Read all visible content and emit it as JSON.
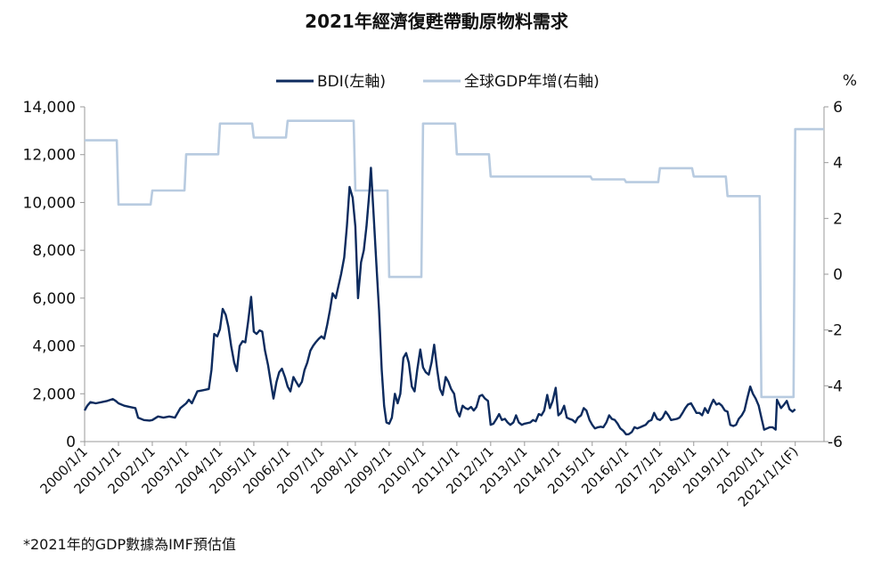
{
  "chart_data": {
    "type": "line",
    "title": "2021年經濟復甦帶動原物料需求",
    "footnote": "*2021年的GDP數據為IMF預估值",
    "y_left": {
      "ylim": [
        0,
        14000
      ],
      "ticks": [
        "0",
        "2,000",
        "4,000",
        "6,000",
        "8,000",
        "10,000",
        "12,000",
        "14,000"
      ],
      "tick_values": [
        0,
        2000,
        4000,
        6000,
        8000,
        10000,
        12000,
        14000
      ]
    },
    "y_right": {
      "label": "%",
      "ylim": [
        -6,
        6
      ],
      "ticks": [
        "-6",
        "-4",
        "-2",
        "0",
        "2",
        "4",
        "6"
      ],
      "tick_values": [
        -6,
        -4,
        -2,
        0,
        2,
        4,
        6
      ]
    },
    "x_ticks": [
      "2000/1/1",
      "2001/1/1",
      "2002/1/1",
      "2003/1/1",
      "2004/1/1",
      "2005/1/1",
      "2006/1/1",
      "2007/1/1",
      "2008/1/1",
      "2009/1/1",
      "2010/1/1",
      "2011/1/1",
      "2012/1/1",
      "2013/1/1",
      "2014/1/1",
      "2015/1/1",
      "2016/1/1",
      "2017/1/1",
      "2018/1/1",
      "2019/1/1",
      "2020/1/1",
      "2021/1/1(F)"
    ],
    "x_range": [
      2000.0,
      2021.85
    ],
    "legend": {
      "position": "top"
    },
    "series": [
      {
        "name": "BDI(左軸)",
        "axis": "left",
        "color": "#0d2b5e",
        "points": [
          [
            2000.0,
            1300
          ],
          [
            2000.08,
            1500
          ],
          [
            2000.17,
            1650
          ],
          [
            2000.33,
            1600
          ],
          [
            2000.5,
            1650
          ],
          [
            2000.67,
            1700
          ],
          [
            2000.83,
            1780
          ],
          [
            2000.92,
            1700
          ],
          [
            2001.0,
            1600
          ],
          [
            2001.17,
            1500
          ],
          [
            2001.33,
            1450
          ],
          [
            2001.5,
            1400
          ],
          [
            2001.58,
            1000
          ],
          [
            2001.75,
            900
          ],
          [
            2001.92,
            880
          ],
          [
            2002.0,
            900
          ],
          [
            2002.17,
            1050
          ],
          [
            2002.33,
            1000
          ],
          [
            2002.5,
            1050
          ],
          [
            2002.67,
            1000
          ],
          [
            2002.83,
            1400
          ],
          [
            2003.0,
            1600
          ],
          [
            2003.08,
            1750
          ],
          [
            2003.17,
            1600
          ],
          [
            2003.33,
            2100
          ],
          [
            2003.5,
            2150
          ],
          [
            2003.67,
            2200
          ],
          [
            2003.75,
            3000
          ],
          [
            2003.83,
            4500
          ],
          [
            2003.92,
            4400
          ],
          [
            2004.0,
            4700
          ],
          [
            2004.08,
            5550
          ],
          [
            2004.17,
            5300
          ],
          [
            2004.25,
            4800
          ],
          [
            2004.33,
            4000
          ],
          [
            2004.42,
            3300
          ],
          [
            2004.5,
            2950
          ],
          [
            2004.58,
            4000
          ],
          [
            2004.67,
            4200
          ],
          [
            2004.75,
            4150
          ],
          [
            2004.83,
            5000
          ],
          [
            2004.92,
            6050
          ],
          [
            2005.0,
            4600
          ],
          [
            2005.08,
            4500
          ],
          [
            2005.17,
            4650
          ],
          [
            2005.25,
            4600
          ],
          [
            2005.33,
            3800
          ],
          [
            2005.42,
            3200
          ],
          [
            2005.5,
            2500
          ],
          [
            2005.58,
            1800
          ],
          [
            2005.67,
            2500
          ],
          [
            2005.75,
            2900
          ],
          [
            2005.83,
            3050
          ],
          [
            2005.92,
            2700
          ],
          [
            2006.0,
            2300
          ],
          [
            2006.08,
            2100
          ],
          [
            2006.17,
            2700
          ],
          [
            2006.25,
            2500
          ],
          [
            2006.33,
            2300
          ],
          [
            2006.42,
            2500
          ],
          [
            2006.5,
            3000
          ],
          [
            2006.58,
            3300
          ],
          [
            2006.67,
            3800
          ],
          [
            2006.75,
            4000
          ],
          [
            2006.83,
            4150
          ],
          [
            2006.92,
            4300
          ],
          [
            2007.0,
            4400
          ],
          [
            2007.08,
            4300
          ],
          [
            2007.17,
            4900
          ],
          [
            2007.25,
            5500
          ],
          [
            2007.33,
            6200
          ],
          [
            2007.42,
            6000
          ],
          [
            2007.5,
            6500
          ],
          [
            2007.58,
            7000
          ],
          [
            2007.67,
            7700
          ],
          [
            2007.75,
            9000
          ],
          [
            2007.83,
            10650
          ],
          [
            2007.92,
            10200
          ],
          [
            2008.0,
            9000
          ],
          [
            2008.08,
            6000
          ],
          [
            2008.17,
            7500
          ],
          [
            2008.25,
            8000
          ],
          [
            2008.33,
            9000
          ],
          [
            2008.42,
            10500
          ],
          [
            2008.46,
            11450
          ],
          [
            2008.54,
            9500
          ],
          [
            2008.62,
            7500
          ],
          [
            2008.7,
            5500
          ],
          [
            2008.78,
            3000
          ],
          [
            2008.85,
            1500
          ],
          [
            2008.92,
            800
          ],
          [
            2009.0,
            750
          ],
          [
            2009.08,
            1000
          ],
          [
            2009.17,
            2000
          ],
          [
            2009.25,
            1600
          ],
          [
            2009.33,
            2000
          ],
          [
            2009.42,
            3500
          ],
          [
            2009.5,
            3700
          ],
          [
            2009.58,
            3300
          ],
          [
            2009.67,
            2300
          ],
          [
            2009.75,
            2100
          ],
          [
            2009.83,
            3000
          ],
          [
            2009.92,
            3850
          ],
          [
            2010.0,
            3100
          ],
          [
            2010.08,
            2900
          ],
          [
            2010.17,
            2800
          ],
          [
            2010.25,
            3300
          ],
          [
            2010.33,
            4050
          ],
          [
            2010.42,
            3000
          ],
          [
            2010.5,
            2200
          ],
          [
            2010.58,
            1950
          ],
          [
            2010.67,
            2700
          ],
          [
            2010.75,
            2500
          ],
          [
            2010.83,
            2200
          ],
          [
            2010.92,
            2000
          ],
          [
            2011.0,
            1300
          ],
          [
            2011.08,
            1050
          ],
          [
            2011.17,
            1500
          ],
          [
            2011.25,
            1400
          ],
          [
            2011.33,
            1350
          ],
          [
            2011.42,
            1450
          ],
          [
            2011.5,
            1300
          ],
          [
            2011.58,
            1450
          ],
          [
            2011.67,
            1900
          ],
          [
            2011.75,
            1950
          ],
          [
            2011.83,
            1800
          ],
          [
            2011.92,
            1700
          ],
          [
            2012.0,
            700
          ],
          [
            2012.08,
            750
          ],
          [
            2012.17,
            950
          ],
          [
            2012.25,
            1150
          ],
          [
            2012.33,
            900
          ],
          [
            2012.42,
            950
          ],
          [
            2012.5,
            800
          ],
          [
            2012.58,
            700
          ],
          [
            2012.67,
            800
          ],
          [
            2012.75,
            1100
          ],
          [
            2012.83,
            800
          ],
          [
            2012.92,
            700
          ],
          [
            2013.0,
            750
          ],
          [
            2013.17,
            800
          ],
          [
            2013.25,
            900
          ],
          [
            2013.33,
            850
          ],
          [
            2013.42,
            1150
          ],
          [
            2013.5,
            1100
          ],
          [
            2013.58,
            1300
          ],
          [
            2013.67,
            1950
          ],
          [
            2013.75,
            1400
          ],
          [
            2013.83,
            1700
          ],
          [
            2013.92,
            2250
          ],
          [
            2014.0,
            1100
          ],
          [
            2014.08,
            1200
          ],
          [
            2014.17,
            1500
          ],
          [
            2014.25,
            1000
          ],
          [
            2014.33,
            950
          ],
          [
            2014.42,
            900
          ],
          [
            2014.5,
            800
          ],
          [
            2014.58,
            1000
          ],
          [
            2014.67,
            1100
          ],
          [
            2014.75,
            1400
          ],
          [
            2014.83,
            1300
          ],
          [
            2014.92,
            900
          ],
          [
            2015.0,
            700
          ],
          [
            2015.08,
            550
          ],
          [
            2015.17,
            600
          ],
          [
            2015.25,
            620
          ],
          [
            2015.33,
            600
          ],
          [
            2015.42,
            800
          ],
          [
            2015.5,
            1100
          ],
          [
            2015.58,
            950
          ],
          [
            2015.67,
            900
          ],
          [
            2015.75,
            750
          ],
          [
            2015.83,
            550
          ],
          [
            2015.92,
            450
          ],
          [
            2016.0,
            300
          ],
          [
            2016.08,
            310
          ],
          [
            2016.17,
            400
          ],
          [
            2016.25,
            600
          ],
          [
            2016.33,
            550
          ],
          [
            2016.42,
            600
          ],
          [
            2016.5,
            650
          ],
          [
            2016.58,
            700
          ],
          [
            2016.67,
            850
          ],
          [
            2016.75,
            900
          ],
          [
            2016.83,
            1200
          ],
          [
            2016.92,
            950
          ],
          [
            2017.0,
            900
          ],
          [
            2017.08,
            1000
          ],
          [
            2017.17,
            1250
          ],
          [
            2017.25,
            1100
          ],
          [
            2017.33,
            900
          ],
          [
            2017.5,
            950
          ],
          [
            2017.58,
            1000
          ],
          [
            2017.67,
            1200
          ],
          [
            2017.75,
            1400
          ],
          [
            2017.83,
            1550
          ],
          [
            2017.92,
            1600
          ],
          [
            2018.0,
            1400
          ],
          [
            2018.08,
            1200
          ],
          [
            2018.17,
            1200
          ],
          [
            2018.25,
            1100
          ],
          [
            2018.33,
            1400
          ],
          [
            2018.42,
            1200
          ],
          [
            2018.5,
            1500
          ],
          [
            2018.58,
            1750
          ],
          [
            2018.67,
            1550
          ],
          [
            2018.75,
            1600
          ],
          [
            2018.83,
            1500
          ],
          [
            2018.92,
            1300
          ],
          [
            2019.0,
            1250
          ],
          [
            2019.08,
            700
          ],
          [
            2019.17,
            650
          ],
          [
            2019.25,
            700
          ],
          [
            2019.33,
            950
          ],
          [
            2019.42,
            1100
          ],
          [
            2019.5,
            1300
          ],
          [
            2019.58,
            1800
          ],
          [
            2019.67,
            2300
          ],
          [
            2019.75,
            2000
          ],
          [
            2019.83,
            1800
          ],
          [
            2019.92,
            1500
          ],
          [
            2020.0,
            1000
          ],
          [
            2020.08,
            500
          ],
          [
            2020.17,
            550
          ],
          [
            2020.25,
            600
          ],
          [
            2020.33,
            600
          ],
          [
            2020.42,
            500
          ],
          [
            2020.46,
            1750
          ],
          [
            2020.58,
            1400
          ],
          [
            2020.67,
            1550
          ],
          [
            2020.75,
            1700
          ],
          [
            2020.83,
            1350
          ],
          [
            2020.92,
            1250
          ],
          [
            2021.0,
            1350
          ]
        ]
      },
      {
        "name": "全球GDP年增(右軸)",
        "axis": "right",
        "color": "#b8cbe0",
        "points": [
          [
            2000.0,
            4.8
          ],
          [
            2000.95,
            4.8
          ],
          [
            2001.0,
            2.5
          ],
          [
            2001.95,
            2.5
          ],
          [
            2002.0,
            3.0
          ],
          [
            2002.95,
            3.0
          ],
          [
            2003.0,
            4.3
          ],
          [
            2003.95,
            4.3
          ],
          [
            2004.0,
            5.4
          ],
          [
            2004.95,
            5.4
          ],
          [
            2005.0,
            4.9
          ],
          [
            2005.95,
            4.9
          ],
          [
            2006.0,
            5.5
          ],
          [
            2007.95,
            5.5
          ],
          [
            2008.0,
            3.0
          ],
          [
            2008.95,
            3.0
          ],
          [
            2009.0,
            -0.1
          ],
          [
            2009.95,
            -0.1
          ],
          [
            2010.0,
            5.4
          ],
          [
            2010.95,
            5.4
          ],
          [
            2011.0,
            4.3
          ],
          [
            2011.95,
            4.3
          ],
          [
            2012.0,
            3.5
          ],
          [
            2014.95,
            3.5
          ],
          [
            2015.0,
            3.4
          ],
          [
            2015.95,
            3.4
          ],
          [
            2016.0,
            3.3
          ],
          [
            2016.95,
            3.3
          ],
          [
            2017.0,
            3.8
          ],
          [
            2017.95,
            3.8
          ],
          [
            2018.0,
            3.5
          ],
          [
            2018.95,
            3.5
          ],
          [
            2019.0,
            2.8
          ],
          [
            2019.95,
            2.8
          ],
          [
            2020.0,
            -4.4
          ],
          [
            2020.95,
            -4.4
          ],
          [
            2021.0,
            5.2
          ],
          [
            2021.85,
            5.2
          ]
        ]
      }
    ]
  }
}
